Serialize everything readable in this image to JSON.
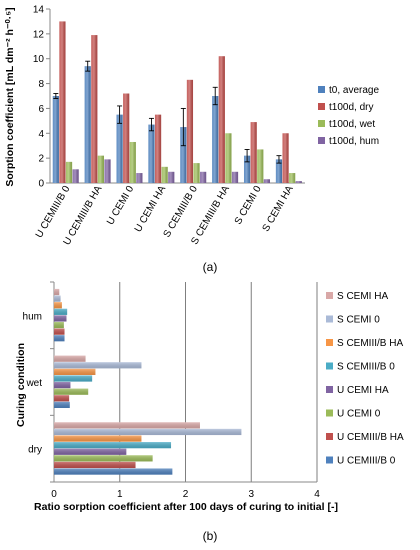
{
  "chart_data": [
    {
      "type": "bar",
      "panel_label": "(a)",
      "ylabel": "Sorption coefficient [mL dm⁻² h⁻⁰·⁵]",
      "ylim": [
        0,
        14
      ],
      "yticks": [
        0,
        2,
        4,
        6,
        8,
        10,
        12,
        14
      ],
      "grid": false,
      "legend_position": "right",
      "categories": [
        "U CEMIII/B 0",
        "U CEMIII/B HA",
        "U CEMI 0",
        "U CEMI HA",
        "S CEMIII/B 0",
        "S CEMIII/B HA",
        "S CEMI 0",
        "S CEMI HA"
      ],
      "series": [
        {
          "name": "t0, average",
          "color": "#4f81bd",
          "values": [
            7.0,
            9.4,
            5.5,
            4.7,
            4.5,
            7.0,
            2.2,
            1.9
          ],
          "errors": [
            0.2,
            0.4,
            0.7,
            0.5,
            1.5,
            0.7,
            0.5,
            0.3
          ]
        },
        {
          "name": "t100d, dry",
          "color": "#c0504d",
          "values": [
            13.0,
            11.9,
            7.2,
            5.5,
            8.3,
            10.2,
            4.9,
            4.0
          ]
        },
        {
          "name": "t100d, wet",
          "color": "#9bbb59",
          "values": [
            1.7,
            2.2,
            3.3,
            1.3,
            1.6,
            4.0,
            2.7,
            0.8
          ]
        },
        {
          "name": "t100d, hum",
          "color": "#8064a2",
          "values": [
            1.1,
            1.9,
            0.8,
            0.9,
            0.9,
            0.9,
            0.3,
            0.15
          ]
        }
      ]
    },
    {
      "type": "bar",
      "orientation": "horizontal",
      "panel_label": "(b)",
      "xlabel": "Ratio sorption coefficient after 100 days of curing to initial [-]",
      "ylabel": "Curing condition",
      "xlim": [
        0,
        4
      ],
      "xticks": [
        0,
        1,
        2,
        3,
        4
      ],
      "grid": true,
      "legend_position": "right",
      "categories": [
        "dry",
        "wet",
        "hum"
      ],
      "series": [
        {
          "name": "U CEMIII/B 0",
          "color": "#4f81bd",
          "values": [
            1.8,
            0.24,
            0.16
          ]
        },
        {
          "name": "U CEMIII/B HA",
          "color": "#c0504d",
          "values": [
            1.24,
            0.23,
            0.16
          ]
        },
        {
          "name": "U CEMI 0",
          "color": "#9bbb59",
          "values": [
            1.5,
            0.52,
            0.15
          ]
        },
        {
          "name": "U CEMI HA",
          "color": "#8064a2",
          "values": [
            1.1,
            0.25,
            0.19
          ]
        },
        {
          "name": "S CEMIII/B 0",
          "color": "#4bacc6",
          "values": [
            1.78,
            0.58,
            0.2
          ]
        },
        {
          "name": "S CEMIII/B HA",
          "color": "#f79646",
          "values": [
            1.33,
            0.63,
            0.12
          ]
        },
        {
          "name": "S CEMI 0",
          "color": "#aabad7",
          "values": [
            2.85,
            1.33,
            0.1
          ]
        },
        {
          "name": "S CEMI HA",
          "color": "#d9a8a7",
          "values": [
            2.22,
            0.48,
            0.08
          ]
        }
      ]
    }
  ]
}
